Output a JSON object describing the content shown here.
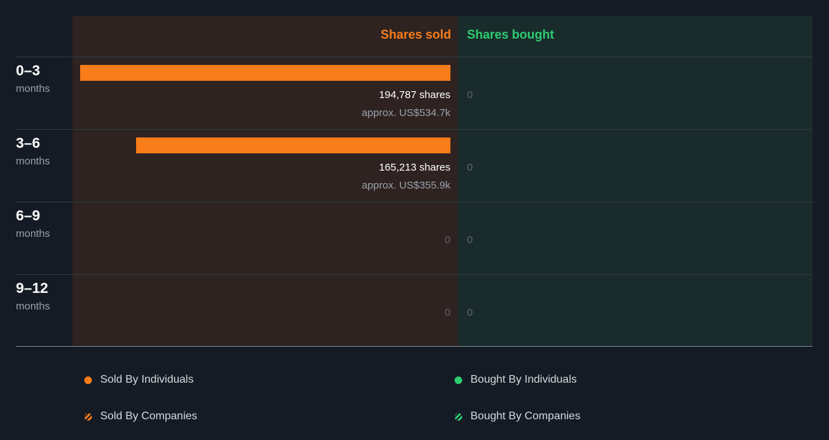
{
  "header": {
    "sold": "Shares sold",
    "bought": "Shares bought"
  },
  "chart_data": {
    "type": "bar",
    "orientation": "horizontal-diverging",
    "categories": [
      "0–3 months",
      "3–6 months",
      "6–9 months",
      "9–12 months"
    ],
    "rows": [
      {
        "label": "0–3",
        "unit": "months",
        "sold": 194787,
        "sold_text": "194,787 shares",
        "sold_value": "approx. US$534.7k",
        "sold_zero": "",
        "bought": 0,
        "bought_text": "0"
      },
      {
        "label": "3–6",
        "unit": "months",
        "sold": 165213,
        "sold_text": "165,213 shares",
        "sold_value": "approx. US$355.9k",
        "sold_zero": "",
        "bought": 0,
        "bought_text": "0"
      },
      {
        "label": "6–9",
        "unit": "months",
        "sold": 0,
        "sold_text": "",
        "sold_value": "",
        "sold_zero": "0",
        "bought": 0,
        "bought_text": "0"
      },
      {
        "label": "9–12",
        "unit": "months",
        "sold": 0,
        "sold_text": "",
        "sold_value": "",
        "sold_zero": "0",
        "bought": 0,
        "bought_text": "0"
      }
    ],
    "series": [
      {
        "name": "Sold By Individuals",
        "color": "#f97d1a",
        "values": [
          194787,
          165213,
          0,
          0
        ]
      },
      {
        "name": "Sold By Companies",
        "color": "#f97d1a",
        "values": [
          0,
          0,
          0,
          0
        ]
      },
      {
        "name": "Bought By Individuals",
        "color": "#2ecc71",
        "values": [
          0,
          0,
          0,
          0
        ]
      },
      {
        "name": "Bought By Companies",
        "color": "#2ecc71",
        "values": [
          0,
          0,
          0,
          0
        ]
      }
    ],
    "legend_position": "bottom"
  },
  "legend": [
    {
      "name": "Sold By Individuals",
      "color": "#f97d1a",
      "style": "solid"
    },
    {
      "name": "Bought By Individuals",
      "color": "#2ecc71",
      "style": "solid"
    },
    {
      "name": "Sold By Companies",
      "color": "#f97d1a",
      "style": "striped"
    },
    {
      "name": "Bought By Companies",
      "color": "#2ecc71",
      "style": "striped"
    }
  ]
}
